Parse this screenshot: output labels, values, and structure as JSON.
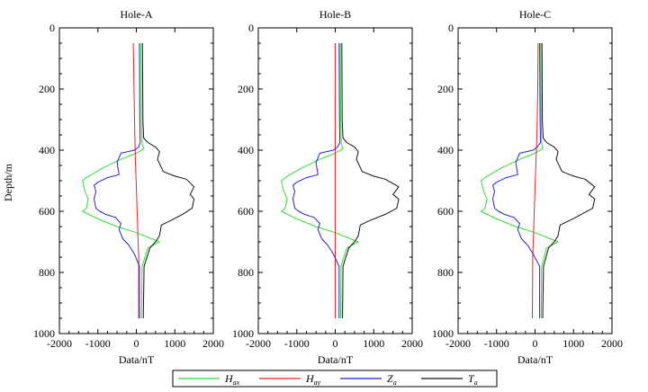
{
  "figure": {
    "ylabel": "Depth/m",
    "xlabel": "Data/nT",
    "legend_position": "bottom"
  },
  "legend": [
    {
      "key": "Hax",
      "base": "H",
      "sub": "ax",
      "color": "#33dd33"
    },
    {
      "key": "Hay",
      "base": "H",
      "sub": "ay",
      "color": "#ee2222"
    },
    {
      "key": "Za",
      "base": "Z",
      "sub": "a",
      "color": "#2222cc"
    },
    {
      "key": "Ta",
      "base": "T",
      "sub": "a",
      "color": "#111111"
    }
  ],
  "chart_data": [
    {
      "type": "line",
      "title": "Hole-A",
      "xlabel": "Data/nT",
      "ylabel": "Depth/m",
      "xlim": [
        -2000,
        2000
      ],
      "ylim": [
        0,
        1000
      ],
      "y_inverted": true,
      "xticks": [
        -2000,
        -1000,
        0,
        1000,
        2000
      ],
      "yticks": [
        0,
        200,
        400,
        600,
        800,
        1000
      ],
      "grid": false,
      "series": [
        {
          "key": "Hax",
          "points": [
            [
              120,
              50
            ],
            [
              130,
              300
            ],
            [
              150,
              380
            ],
            [
              200,
              395
            ],
            [
              0,
              410
            ],
            [
              -400,
              430
            ],
            [
              -900,
              460
            ],
            [
              -1300,
              490
            ],
            [
              -1400,
              500
            ],
            [
              -1350,
              530
            ],
            [
              -1250,
              560
            ],
            [
              -1300,
              590
            ],
            [
              -1400,
              600
            ],
            [
              -1000,
              625
            ],
            [
              -500,
              650
            ],
            [
              0,
              670
            ],
            [
              400,
              690
            ],
            [
              600,
              700
            ],
            [
              300,
              720
            ],
            [
              150,
              780
            ],
            [
              130,
              950
            ]
          ]
        },
        {
          "key": "Hay",
          "points": [
            [
              -80,
              50
            ],
            [
              -60,
              200
            ],
            [
              -40,
              350
            ],
            [
              -20,
              450
            ],
            [
              0,
              520
            ],
            [
              20,
              600
            ],
            [
              40,
              680
            ],
            [
              60,
              750
            ],
            [
              60,
              950
            ]
          ]
        },
        {
          "key": "Za",
          "points": [
            [
              80,
              50
            ],
            [
              90,
              300
            ],
            [
              100,
              375
            ],
            [
              60,
              390
            ],
            [
              -50,
              400
            ],
            [
              -400,
              410
            ],
            [
              -500,
              440
            ],
            [
              -450,
              480
            ],
            [
              -750,
              490
            ],
            [
              -1000,
              505
            ],
            [
              -1100,
              515
            ],
            [
              -1050,
              535
            ],
            [
              -1100,
              560
            ],
            [
              -1050,
              590
            ],
            [
              -950,
              600
            ],
            [
              -800,
              610
            ],
            [
              -550,
              620
            ],
            [
              -400,
              640
            ],
            [
              -450,
              660
            ],
            [
              -350,
              690
            ],
            [
              -200,
              710
            ],
            [
              -50,
              740
            ],
            [
              80,
              780
            ],
            [
              80,
              950
            ]
          ]
        },
        {
          "key": "Ta",
          "points": [
            [
              160,
              50
            ],
            [
              170,
              300
            ],
            [
              190,
              360
            ],
            [
              300,
              375
            ],
            [
              500,
              390
            ],
            [
              600,
              405
            ],
            [
              550,
              430
            ],
            [
              700,
              470
            ],
            [
              1000,
              485
            ],
            [
              1300,
              495
            ],
            [
              1500,
              520
            ],
            [
              1400,
              545
            ],
            [
              1500,
              560
            ],
            [
              1450,
              590
            ],
            [
              1200,
              610
            ],
            [
              900,
              630
            ],
            [
              650,
              645
            ],
            [
              600,
              680
            ],
            [
              500,
              700
            ],
            [
              350,
              720
            ],
            [
              200,
              780
            ],
            [
              180,
              950
            ]
          ]
        }
      ]
    },
    {
      "type": "line",
      "title": "Hole-B",
      "xlabel": "Data/nT",
      "ylabel": "Depth/m",
      "xlim": [
        -2000,
        2000
      ],
      "ylim": [
        0,
        1000
      ],
      "y_inverted": true,
      "xticks": [
        -2000,
        -1000,
        0,
        1000,
        2000
      ],
      "yticks": [
        0,
        200,
        400,
        600,
        800,
        1000
      ],
      "grid": false,
      "series": [
        {
          "key": "Hax",
          "points": [
            [
              130,
              50
            ],
            [
              140,
              300
            ],
            [
              160,
              380
            ],
            [
              200,
              395
            ],
            [
              0,
              410
            ],
            [
              -400,
              430
            ],
            [
              -900,
              460
            ],
            [
              -1300,
              490
            ],
            [
              -1400,
              500
            ],
            [
              -1350,
              530
            ],
            [
              -1250,
              560
            ],
            [
              -1300,
              590
            ],
            [
              -1400,
              600
            ],
            [
              -1000,
              625
            ],
            [
              -500,
              650
            ],
            [
              0,
              670
            ],
            [
              400,
              690
            ],
            [
              600,
              700
            ],
            [
              300,
              720
            ],
            [
              150,
              780
            ],
            [
              140,
              950
            ]
          ]
        },
        {
          "key": "Hay",
          "points": [
            [
              0,
              50
            ],
            [
              0,
              200
            ],
            [
              0,
              400
            ],
            [
              0,
              600
            ],
            [
              0,
              800
            ],
            [
              0,
              950
            ]
          ]
        },
        {
          "key": "Za",
          "points": [
            [
              100,
              50
            ],
            [
              110,
              300
            ],
            [
              120,
              375
            ],
            [
              60,
              390
            ],
            [
              -50,
              400
            ],
            [
              -400,
              410
            ],
            [
              -500,
              440
            ],
            [
              -450,
              480
            ],
            [
              -750,
              490
            ],
            [
              -1000,
              505
            ],
            [
              -1100,
              515
            ],
            [
              -1050,
              535
            ],
            [
              -1100,
              560
            ],
            [
              -1050,
              590
            ],
            [
              -950,
              600
            ],
            [
              -800,
              610
            ],
            [
              -550,
              620
            ],
            [
              -400,
              640
            ],
            [
              -450,
              660
            ],
            [
              -350,
              690
            ],
            [
              -200,
              710
            ],
            [
              -50,
              740
            ],
            [
              100,
              780
            ],
            [
              100,
              950
            ]
          ]
        },
        {
          "key": "Ta",
          "points": [
            [
              170,
              50
            ],
            [
              180,
              300
            ],
            [
              200,
              360
            ],
            [
              300,
              375
            ],
            [
              500,
              390
            ],
            [
              600,
              405
            ],
            [
              550,
              430
            ],
            [
              700,
              470
            ],
            [
              1000,
              485
            ],
            [
              1300,
              495
            ],
            [
              1650,
              520
            ],
            [
              1500,
              545
            ],
            [
              1650,
              560
            ],
            [
              1600,
              590
            ],
            [
              1300,
              610
            ],
            [
              900,
              630
            ],
            [
              650,
              645
            ],
            [
              600,
              680
            ],
            [
              500,
              700
            ],
            [
              350,
              720
            ],
            [
              200,
              780
            ],
            [
              190,
              950
            ]
          ]
        }
      ]
    },
    {
      "type": "line",
      "title": "Hole-C",
      "xlabel": "Data/nT",
      "ylabel": "Depth/m",
      "xlim": [
        -2000,
        2000
      ],
      "ylim": [
        0,
        1000
      ],
      "y_inverted": true,
      "xticks": [
        -2000,
        -1000,
        0,
        1000,
        2000
      ],
      "yticks": [
        0,
        200,
        400,
        600,
        800,
        1000
      ],
      "grid": false,
      "series": [
        {
          "key": "Hax",
          "points": [
            [
              150,
              50
            ],
            [
              160,
              300
            ],
            [
              170,
              380
            ],
            [
              200,
              395
            ],
            [
              0,
              410
            ],
            [
              -400,
              430
            ],
            [
              -900,
              460
            ],
            [
              -1300,
              490
            ],
            [
              -1400,
              500
            ],
            [
              -1350,
              530
            ],
            [
              -1250,
              560
            ],
            [
              -1300,
              590
            ],
            [
              -1400,
              600
            ],
            [
              -1000,
              625
            ],
            [
              -500,
              650
            ],
            [
              0,
              670
            ],
            [
              400,
              690
            ],
            [
              600,
              700
            ],
            [
              300,
              720
            ],
            [
              170,
              780
            ],
            [
              160,
              950
            ]
          ]
        },
        {
          "key": "Hay",
          "points": [
            [
              80,
              50
            ],
            [
              70,
              200
            ],
            [
              50,
              350
            ],
            [
              20,
              450
            ],
            [
              0,
              520
            ],
            [
              -20,
              600
            ],
            [
              -40,
              680
            ],
            [
              -60,
              750
            ],
            [
              -70,
              950
            ]
          ]
        },
        {
          "key": "Za",
          "points": [
            [
              120,
              50
            ],
            [
              130,
              300
            ],
            [
              140,
              375
            ],
            [
              60,
              390
            ],
            [
              -50,
              400
            ],
            [
              -400,
              410
            ],
            [
              -500,
              440
            ],
            [
              -450,
              480
            ],
            [
              -750,
              490
            ],
            [
              -1000,
              505
            ],
            [
              -1100,
              515
            ],
            [
              -1050,
              535
            ],
            [
              -1100,
              560
            ],
            [
              -1050,
              590
            ],
            [
              -950,
              600
            ],
            [
              -800,
              610
            ],
            [
              -550,
              620
            ],
            [
              -400,
              640
            ],
            [
              -450,
              660
            ],
            [
              -350,
              690
            ],
            [
              -200,
              710
            ],
            [
              -50,
              740
            ],
            [
              120,
              780
            ],
            [
              120,
              950
            ]
          ]
        },
        {
          "key": "Ta",
          "points": [
            [
              180,
              50
            ],
            [
              190,
              300
            ],
            [
              210,
              360
            ],
            [
              300,
              375
            ],
            [
              500,
              390
            ],
            [
              600,
              405
            ],
            [
              550,
              430
            ],
            [
              700,
              470
            ],
            [
              1000,
              485
            ],
            [
              1300,
              495
            ],
            [
              1550,
              520
            ],
            [
              1400,
              545
            ],
            [
              1550,
              560
            ],
            [
              1500,
              590
            ],
            [
              1200,
              610
            ],
            [
              900,
              630
            ],
            [
              650,
              645
            ],
            [
              600,
              680
            ],
            [
              500,
              700
            ],
            [
              350,
              720
            ],
            [
              220,
              780
            ],
            [
              200,
              950
            ]
          ]
        }
      ]
    }
  ]
}
